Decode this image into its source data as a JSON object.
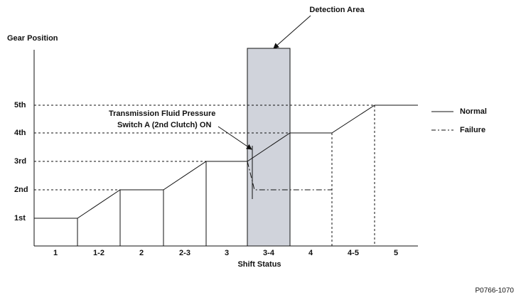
{
  "header": {
    "callout": "Detection Area",
    "y_axis_title": "Gear Position",
    "x_axis_title": "Shift Status"
  },
  "gear_levels": [
    "1st",
    "2nd",
    "3rd",
    "4th",
    "5th"
  ],
  "shift_status": [
    "1",
    "1-2",
    "2",
    "2-3",
    "3",
    "3-4",
    "4",
    "4-5",
    "5"
  ],
  "annotation": [
    "Transmission Fluid Pressure",
    "Switch A (2nd Clutch) ON"
  ],
  "legend": [
    "Normal",
    "Failure"
  ],
  "figure_id": "P0766-1070"
}
